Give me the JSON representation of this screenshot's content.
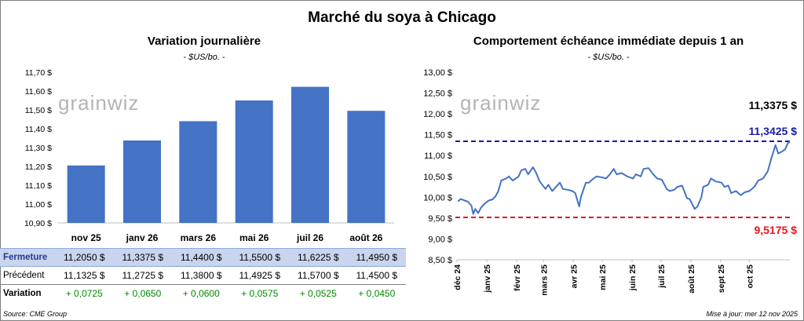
{
  "title": "Marché du soya à Chicago",
  "left_panel": {
    "title": "Variation journalière",
    "unit": "- $US/bo. -",
    "watermark": "grainwiz"
  },
  "right_panel": {
    "title": "Comportement échéance immédiate depuis 1 an",
    "unit": "- $US/bo. -",
    "watermark": "grainwiz",
    "last_label": "11,3375 $",
    "high_label": "11,3425 $",
    "low_label": "9,5175 $"
  },
  "table": {
    "rows": [
      {
        "label": "Fermeture",
        "cells": [
          "11,2050  $",
          "11,3375  $",
          "11,4400  $",
          "11,5500  $",
          "11,6225  $",
          "11,4950  $"
        ]
      },
      {
        "label": "Précédent",
        "cells": [
          "11,1325  $",
          "11,2725  $",
          "11,3800  $",
          "11,4925  $",
          "11,5700  $",
          "11,4500  $"
        ]
      },
      {
        "label": "Variation",
        "cells": [
          "+ 0,0725",
          "+ 0,0650",
          "+ 0,0600",
          "+ 0,0575",
          "+ 0,0525",
          "+ 0,0450"
        ]
      }
    ]
  },
  "footer": {
    "source": "Source: CME Group",
    "updated": "Mise à jour: mer 12 nov 2025"
  },
  "colors": {
    "bar": "#4472c4",
    "line": "#4472c4",
    "high_line": "#1a1aa6",
    "low_line": "#e8141c",
    "watermark": "#b4b4b4"
  },
  "chart_data": [
    {
      "type": "bar",
      "title": "Variation journalière",
      "subtitle": "- $US/bo. -",
      "categories": [
        "nov 25",
        "janv 26",
        "mars 26",
        "mai 26",
        "juil 26",
        "août 26"
      ],
      "values": [
        11.205,
        11.3375,
        11.44,
        11.55,
        11.6225,
        11.495
      ],
      "ylim": [
        10.9,
        11.7
      ],
      "yticks": [
        10.9,
        11.0,
        11.1,
        11.2,
        11.3,
        11.4,
        11.5,
        11.6,
        11.7
      ],
      "ytick_labels": [
        "10,90 $",
        "11,00 $",
        "11,10 $",
        "11,20 $",
        "11,30 $",
        "11,40 $",
        "11,50 $",
        "11,60 $",
        "11,70 $"
      ],
      "grid": false
    },
    {
      "type": "line",
      "title": "Comportement échéance immédiate depuis 1 an",
      "subtitle": "- $US/bo. -",
      "ylim": [
        8.5,
        13.0
      ],
      "yticks": [
        8.5,
        9.0,
        9.5,
        10.0,
        10.5,
        11.0,
        11.5,
        12.0,
        12.5,
        13.0
      ],
      "ytick_labels": [
        "8,50 $",
        "9,00 $",
        "9,50 $",
        "10,00 $",
        "10,50 $",
        "11,00 $",
        "11,50 $",
        "12,00 $",
        "12,50 $",
        "13,00 $"
      ],
      "xlim": [
        "2024-12-01",
        "2025-11-12"
      ],
      "xtick_labels": [
        "déc 24",
        "janv 25",
        "févr 25",
        "mars 25",
        "avr 25",
        "mai 25",
        "juin 25",
        "juil 25",
        "août 25",
        "sept 25",
        "oct 25"
      ],
      "xtick_dates": [
        "2024-12-01",
        "2025-01-01",
        "2025-02-01",
        "2025-03-01",
        "2025-04-01",
        "2025-05-01",
        "2025-06-01",
        "2025-07-01",
        "2025-08-01",
        "2025-09-01",
        "2025-10-01"
      ],
      "grid": false,
      "reference_lines": [
        {
          "label": "11,3425 $",
          "y": 11.3425
        },
        {
          "label": "9,5175 $",
          "y": 9.5175
        }
      ],
      "series": [
        {
          "points": [
            [
              "2024-12-02",
              9.9
            ],
            [
              "2024-12-05",
              9.96
            ],
            [
              "2024-12-09",
              9.92
            ],
            [
              "2024-12-12",
              9.9
            ],
            [
              "2024-12-16",
              9.8
            ],
            [
              "2024-12-18",
              9.6
            ],
            [
              "2024-12-20",
              9.72
            ],
            [
              "2024-12-23",
              9.62
            ],
            [
              "2024-12-26",
              9.75
            ],
            [
              "2024-12-30",
              9.85
            ],
            [
              "2025-01-03",
              9.92
            ],
            [
              "2025-01-07",
              9.95
            ],
            [
              "2025-01-10",
              10.02
            ],
            [
              "2025-01-13",
              10.15
            ],
            [
              "2025-01-16",
              10.4
            ],
            [
              "2025-01-21",
              10.45
            ],
            [
              "2025-01-24",
              10.5
            ],
            [
              "2025-01-28",
              10.4
            ],
            [
              "2025-02-03",
              10.5
            ],
            [
              "2025-02-06",
              10.65
            ],
            [
              "2025-02-10",
              10.68
            ],
            [
              "2025-02-13",
              10.55
            ],
            [
              "2025-02-18",
              10.72
            ],
            [
              "2025-02-21",
              10.6
            ],
            [
              "2025-02-25",
              10.38
            ],
            [
              "2025-03-03",
              10.2
            ],
            [
              "2025-03-06",
              10.3
            ],
            [
              "2025-03-10",
              10.15
            ],
            [
              "2025-03-14",
              10.25
            ],
            [
              "2025-03-18",
              10.35
            ],
            [
              "2025-03-21",
              10.2
            ],
            [
              "2025-03-26",
              10.18
            ],
            [
              "2025-03-31",
              10.15
            ],
            [
              "2025-04-03",
              10.1
            ],
            [
              "2025-04-07",
              9.78
            ],
            [
              "2025-04-09",
              10.02
            ],
            [
              "2025-04-14",
              10.35
            ],
            [
              "2025-04-17",
              10.35
            ],
            [
              "2025-04-22",
              10.45
            ],
            [
              "2025-04-25",
              10.5
            ],
            [
              "2025-04-30",
              10.48
            ],
            [
              "2025-05-05",
              10.45
            ],
            [
              "2025-05-09",
              10.55
            ],
            [
              "2025-05-13",
              10.68
            ],
            [
              "2025-05-16",
              10.55
            ],
            [
              "2025-05-21",
              10.58
            ],
            [
              "2025-05-27",
              10.5
            ],
            [
              "2025-06-02",
              10.45
            ],
            [
              "2025-06-05",
              10.55
            ],
            [
              "2025-06-10",
              10.5
            ],
            [
              "2025-06-13",
              10.68
            ],
            [
              "2025-06-18",
              10.7
            ],
            [
              "2025-06-23",
              10.55
            ],
            [
              "2025-06-27",
              10.45
            ],
            [
              "2025-07-02",
              10.42
            ],
            [
              "2025-07-07",
              10.2
            ],
            [
              "2025-07-10",
              10.15
            ],
            [
              "2025-07-15",
              10.18
            ],
            [
              "2025-07-18",
              10.25
            ],
            [
              "2025-07-23",
              10.28
            ],
            [
              "2025-07-28",
              9.98
            ],
            [
              "2025-07-31",
              9.95
            ],
            [
              "2025-08-05",
              9.72
            ],
            [
              "2025-08-08",
              9.78
            ],
            [
              "2025-08-12",
              10.0
            ],
            [
              "2025-08-14",
              10.25
            ],
            [
              "2025-08-19",
              10.3
            ],
            [
              "2025-08-22",
              10.45
            ],
            [
              "2025-08-27",
              10.38
            ],
            [
              "2025-09-02",
              10.35
            ],
            [
              "2025-09-05",
              10.25
            ],
            [
              "2025-09-09",
              10.28
            ],
            [
              "2025-09-12",
              10.1
            ],
            [
              "2025-09-17",
              10.15
            ],
            [
              "2025-09-22",
              10.05
            ],
            [
              "2025-09-26",
              10.12
            ],
            [
              "2025-10-01",
              10.15
            ],
            [
              "2025-10-06",
              10.25
            ],
            [
              "2025-10-10",
              10.4
            ],
            [
              "2025-10-15",
              10.45
            ],
            [
              "2025-10-20",
              10.62
            ],
            [
              "2025-10-24",
              10.95
            ],
            [
              "2025-10-28",
              11.25
            ],
            [
              "2025-10-31",
              11.05
            ],
            [
              "2025-11-04",
              11.1
            ],
            [
              "2025-11-07",
              11.15
            ],
            [
              "2025-11-10",
              11.3
            ],
            [
              "2025-11-12",
              11.3375
            ]
          ]
        }
      ]
    }
  ]
}
